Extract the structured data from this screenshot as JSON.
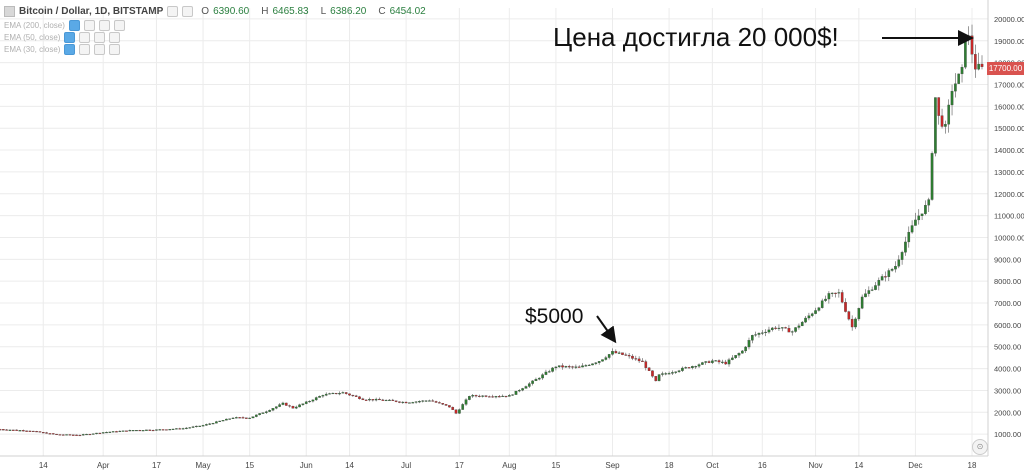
{
  "legend": {
    "symbol": "Bitcoin / Dollar, 1D, BITSTAMP",
    "o_label": "O",
    "o_value": "6390.60",
    "h_label": "H",
    "h_value": "6465.83",
    "l_label": "L",
    "l_value": "6386.20",
    "c_label": "C",
    "c_value": "6454.02",
    "indicators": [
      "EMA (200, close)",
      "EMA (50, close)",
      "EMA (30, close)"
    ]
  },
  "annotations": {
    "top": "Цена достигла 20 000$!",
    "mid": "$5000"
  },
  "price_tag": "17700.00",
  "zoom_label": "⊙",
  "colors": {
    "up": "#2e7d32",
    "down": "#c62828",
    "grid": "#ececec",
    "tag": "#d9534f"
  },
  "chart_data": {
    "type": "candlestick",
    "title": "Bitcoin / Dollar, 1D, BITSTAMP",
    "ylim": [
      0,
      20500
    ],
    "yticks": [
      1000,
      2000,
      3000,
      4000,
      5000,
      6000,
      7000,
      8000,
      9000,
      10000,
      11000,
      12000,
      13000,
      14000,
      15000,
      16000,
      17000,
      18000,
      19000,
      20000
    ],
    "ytick_labels": [
      "1000.00",
      "2000.00",
      "3000.00",
      "4000.00",
      "5000.00",
      "6000.00",
      "7000.00",
      "8000.00",
      "9000.00",
      "10000.00",
      "11000.00",
      "12000.00",
      "13000.00",
      "14000.00",
      "15000.00",
      "16000.00",
      "17000.00",
      "18000.00",
      "19000.00",
      "20000.00"
    ],
    "x_start": "2017-03-01",
    "x_end": "2017-12-21",
    "xticks": [
      {
        "date": "2017-03-14",
        "label": "14"
      },
      {
        "date": "2017-04-01",
        "label": "Apr"
      },
      {
        "date": "2017-04-17",
        "label": "17"
      },
      {
        "date": "2017-05-01",
        "label": "May"
      },
      {
        "date": "2017-05-15",
        "label": "15"
      },
      {
        "date": "2017-06-01",
        "label": "Jun"
      },
      {
        "date": "2017-06-14",
        "label": "14"
      },
      {
        "date": "2017-07-01",
        "label": "Jul"
      },
      {
        "date": "2017-07-17",
        "label": "17"
      },
      {
        "date": "2017-08-01",
        "label": "Aug"
      },
      {
        "date": "2017-08-15",
        "label": "15"
      },
      {
        "date": "2017-09-01",
        "label": "Sep"
      },
      {
        "date": "2017-09-18",
        "label": "18"
      },
      {
        "date": "2017-10-01",
        "label": "Oct"
      },
      {
        "date": "2017-10-16",
        "label": "16"
      },
      {
        "date": "2017-11-01",
        "label": "Nov"
      },
      {
        "date": "2017-11-14",
        "label": "14"
      },
      {
        "date": "2017-12-01",
        "label": "Dec"
      },
      {
        "date": "2017-12-18",
        "label": "18"
      }
    ],
    "close_path": [
      [
        "2017-03-01",
        1220
      ],
      [
        "2017-03-10",
        1150
      ],
      [
        "2017-03-18",
        980
      ],
      [
        "2017-03-25",
        960
      ],
      [
        "2017-04-01",
        1080
      ],
      [
        "2017-04-10",
        1180
      ],
      [
        "2017-04-17",
        1200
      ],
      [
        "2017-04-25",
        1260
      ],
      [
        "2017-05-01",
        1400
      ],
      [
        "2017-05-10",
        1750
      ],
      [
        "2017-05-15",
        1750
      ],
      [
        "2017-05-20",
        2050
      ],
      [
        "2017-05-25",
        2400
      ],
      [
        "2017-05-28",
        2200
      ],
      [
        "2017-06-01",
        2450
      ],
      [
        "2017-06-06",
        2800
      ],
      [
        "2017-06-12",
        2900
      ],
      [
        "2017-06-18",
        2600
      ],
      [
        "2017-06-25",
        2550
      ],
      [
        "2017-07-01",
        2450
      ],
      [
        "2017-07-08",
        2550
      ],
      [
        "2017-07-14",
        2250
      ],
      [
        "2017-07-16",
        1950
      ],
      [
        "2017-07-20",
        2750
      ],
      [
        "2017-07-28",
        2750
      ],
      [
        "2017-08-01",
        2750
      ],
      [
        "2017-08-08",
        3400
      ],
      [
        "2017-08-15",
        4100
      ],
      [
        "2017-08-22",
        4050
      ],
      [
        "2017-08-28",
        4350
      ],
      [
        "2017-09-01",
        4750
      ],
      [
        "2017-09-05",
        4600
      ],
      [
        "2017-09-10",
        4300
      ],
      [
        "2017-09-14",
        3400
      ],
      [
        "2017-09-15",
        3700
      ],
      [
        "2017-09-20",
        3900
      ],
      [
        "2017-09-27",
        4200
      ],
      [
        "2017-10-01",
        4350
      ],
      [
        "2017-10-05",
        4250
      ],
      [
        "2017-10-10",
        4800
      ],
      [
        "2017-10-13",
        5500
      ],
      [
        "2017-10-20",
        5900
      ],
      [
        "2017-10-25",
        5700
      ],
      [
        "2017-11-01",
        6700
      ],
      [
        "2017-11-05",
        7350
      ],
      [
        "2017-11-08",
        7450
      ],
      [
        "2017-11-12",
        5900
      ],
      [
        "2017-11-15",
        7250
      ],
      [
        "2017-11-20",
        8000
      ],
      [
        "2017-11-25",
        8700
      ],
      [
        "2017-11-28",
        9800
      ],
      [
        "2017-12-01",
        10800
      ],
      [
        "2017-12-05",
        11600
      ],
      [
        "2017-12-07",
        16400
      ],
      [
        "2017-12-08",
        15500
      ],
      [
        "2017-12-10",
        15000
      ],
      [
        "2017-12-12",
        16800
      ],
      [
        "2017-12-15",
        17600
      ],
      [
        "2017-12-16",
        19400
      ],
      [
        "2017-12-17",
        19100
      ],
      [
        "2017-12-19",
        17800
      ],
      [
        "2017-12-21",
        17700
      ]
    ]
  }
}
